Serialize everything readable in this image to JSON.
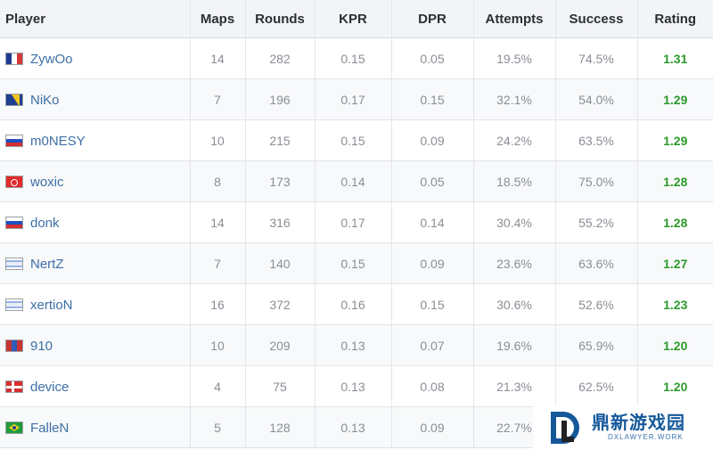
{
  "columns": [
    "Player",
    "Maps",
    "Rounds",
    "KPR",
    "DPR",
    "Attempts",
    "Success",
    "Rating"
  ],
  "rows": [
    {
      "flag": "france-flag-icon",
      "player": "ZywOo",
      "maps": "14",
      "rounds": "282",
      "kpr": "0.15",
      "dpr": "0.05",
      "attempts": "19.5%",
      "success": "74.5%",
      "rating": "1.31"
    },
    {
      "flag": "bosnia-flag-icon",
      "player": "NiKo",
      "maps": "7",
      "rounds": "196",
      "kpr": "0.17",
      "dpr": "0.15",
      "attempts": "32.1%",
      "success": "54.0%",
      "rating": "1.29"
    },
    {
      "flag": "russia-flag-icon",
      "player": "m0NESY",
      "maps": "10",
      "rounds": "215",
      "kpr": "0.15",
      "dpr": "0.09",
      "attempts": "24.2%",
      "success": "63.5%",
      "rating": "1.29"
    },
    {
      "flag": "turkey-flag-icon",
      "player": "woxic",
      "maps": "8",
      "rounds": "173",
      "kpr": "0.14",
      "dpr": "0.05",
      "attempts": "18.5%",
      "success": "75.0%",
      "rating": "1.28"
    },
    {
      "flag": "russia-flag-icon",
      "player": "donk",
      "maps": "14",
      "rounds": "316",
      "kpr": "0.17",
      "dpr": "0.14",
      "attempts": "30.4%",
      "success": "55.2%",
      "rating": "1.28"
    },
    {
      "flag": "israel-flag-icon",
      "player": "NertZ",
      "maps": "7",
      "rounds": "140",
      "kpr": "0.15",
      "dpr": "0.09",
      "attempts": "23.6%",
      "success": "63.6%",
      "rating": "1.27"
    },
    {
      "flag": "israel-flag-icon",
      "player": "xertioN",
      "maps": "16",
      "rounds": "372",
      "kpr": "0.16",
      "dpr": "0.15",
      "attempts": "30.6%",
      "success": "52.6%",
      "rating": "1.23"
    },
    {
      "flag": "mongolia-flag-icon",
      "player": "910",
      "maps": "10",
      "rounds": "209",
      "kpr": "0.13",
      "dpr": "0.07",
      "attempts": "19.6%",
      "success": "65.9%",
      "rating": "1.20"
    },
    {
      "flag": "denmark-flag-icon",
      "player": "device",
      "maps": "4",
      "rounds": "75",
      "kpr": "0.13",
      "dpr": "0.08",
      "attempts": "21.3%",
      "success": "62.5%",
      "rating": "1.20"
    },
    {
      "flag": "brazil-flag-icon",
      "player": "FalleN",
      "maps": "5",
      "rounds": "128",
      "kpr": "0.13",
      "dpr": "0.09",
      "attempts": "22.7%",
      "success": "",
      "rating": ""
    }
  ],
  "watermark": {
    "title": "鼎新游戏园",
    "subtitle": "DXLAWYER.WORK"
  },
  "colors": {
    "rating_green": "#2c9a2c",
    "player_link_blue": "#3c6fa6",
    "header_bg": "#f3f4f6",
    "watermark_blue": "#15589a"
  }
}
